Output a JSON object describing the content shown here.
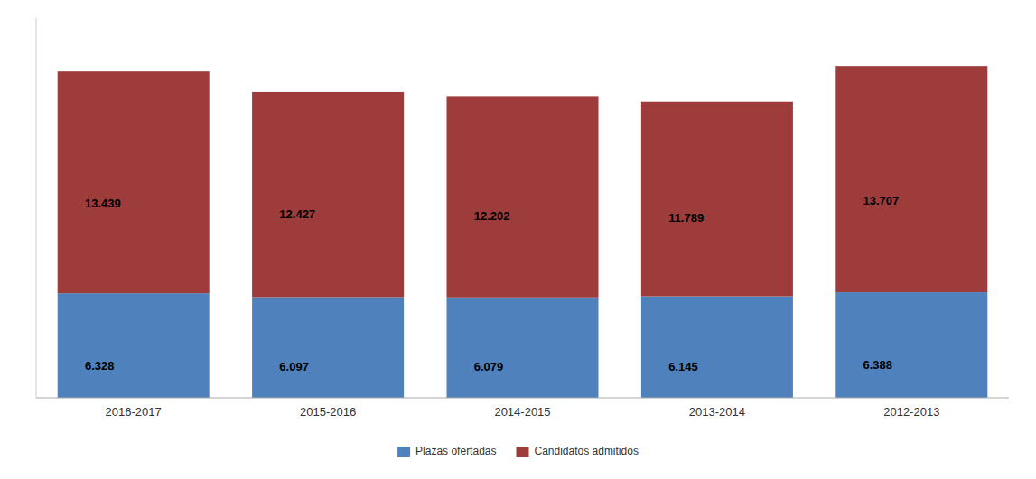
{
  "chart_data": {
    "type": "bar",
    "stacked": true,
    "categories": [
      "2016-2017",
      "2015-2016",
      "2014-2015",
      "2013-2014",
      "2012-2013"
    ],
    "series": [
      {
        "name": "Plazas ofertadas",
        "color": "#4F81BD",
        "values": [
          6328,
          6097,
          6079,
          6145,
          6388
        ],
        "value_labels": [
          "6.328",
          "6.097",
          "6.079",
          "6.145",
          "6.388"
        ]
      },
      {
        "name": "Candidatos admitidos",
        "color": "#9E3B3B",
        "values": [
          13439,
          12427,
          12202,
          11789,
          13707
        ],
        "value_labels": [
          "13.439",
          "12.427",
          "12.202",
          "11.789",
          "13.707"
        ]
      }
    ],
    "ylim": [
      0,
      23000
    ],
    "yticks": [],
    "grid": false,
    "tick_labels": "x",
    "data_labels": true,
    "legend": "bottom"
  }
}
